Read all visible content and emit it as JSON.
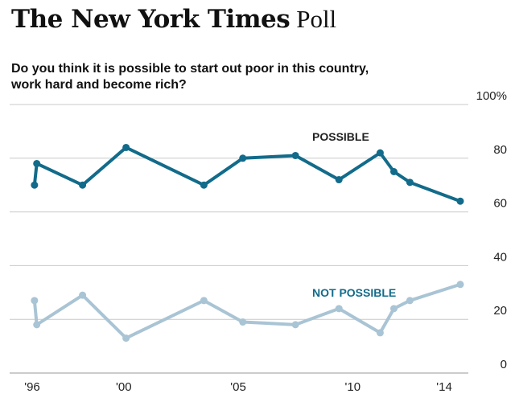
{
  "header": {
    "masthead": "The New York Times",
    "suffix": "Poll"
  },
  "question": {
    "line1": "Do you think it is possible to start out poor in this country,",
    "line2": "work hard and become rich?"
  },
  "colors": {
    "possible": "#126b8a",
    "not_possible": "#a9c4d4",
    "grid": "#c8c8c8",
    "text": "#222222"
  },
  "chart_data": {
    "type": "line",
    "title": "Do you think it is possible to start out poor in this country, work hard and become rich?",
    "x_tick_labels": [
      "'96",
      "'00",
      "'05",
      "'10",
      "'14"
    ],
    "x_tick_values": [
      1996,
      2000,
      2005,
      2010,
      2014
    ],
    "y_tick_labels": [
      "100%",
      "80",
      "60",
      "40",
      "20",
      "0"
    ],
    "y_tick_values": [
      100,
      80,
      60,
      40,
      20,
      0
    ],
    "ylim": [
      0,
      100
    ],
    "xlim": [
      1995.7,
      2015.0
    ],
    "grid": true,
    "series": [
      {
        "name": "POSSIBLE",
        "x": [
          1996.1,
          1996.2,
          1998.2,
          2000.1,
          2003.5,
          2005.2,
          2007.5,
          2009.4,
          2011.2,
          2011.8,
          2012.5,
          2014.7
        ],
        "y": [
          70,
          78,
          70,
          84,
          70,
          80,
          81,
          72,
          82,
          75,
          71,
          64
        ]
      },
      {
        "name": "NOT POSSIBLE",
        "x": [
          1996.1,
          1996.2,
          1998.2,
          2000.1,
          2003.5,
          2005.2,
          2007.5,
          2009.4,
          2011.2,
          2011.8,
          2012.5,
          2014.7
        ],
        "y": [
          27,
          18,
          29,
          13,
          27,
          19,
          18,
          24,
          15,
          24,
          27,
          33
        ]
      }
    ]
  }
}
